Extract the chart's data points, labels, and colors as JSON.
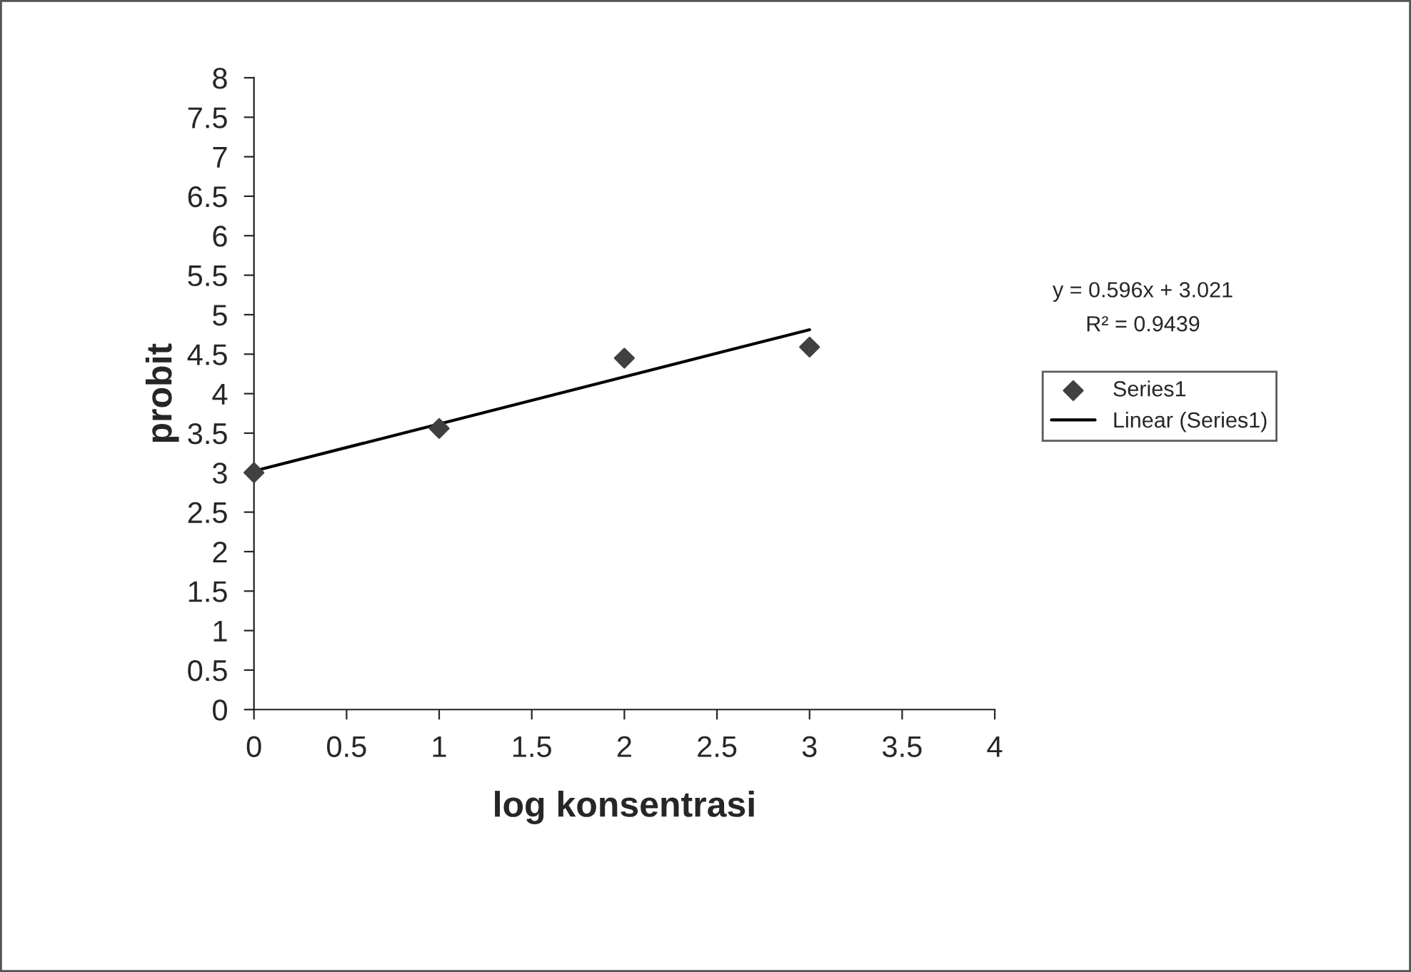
{
  "chart_data": {
    "type": "scatter",
    "xlabel": "log konsentrasi",
    "ylabel": "probit",
    "series": [
      {
        "name": "Series1",
        "color": "#404040",
        "marker": "diamond",
        "x": [
          0,
          1,
          2,
          3
        ],
        "values": [
          3.0,
          3.56,
          4.45,
          4.59
        ]
      },
      {
        "name": "Linear (Series1)",
        "type": "line",
        "color": "#000000",
        "marker": "none",
        "line_style": "solid",
        "x": [
          0,
          3
        ],
        "values": [
          3.02,
          4.81
        ]
      }
    ],
    "annotations": [
      "y = 0.596x + 3.021",
      "R² = 0.9439"
    ],
    "xlim": [
      0,
      4
    ],
    "xticks": [
      0,
      0.5,
      1,
      1.5,
      2,
      2.5,
      3,
      3.5,
      4
    ],
    "ylim": [
      0,
      8
    ],
    "yticks": [
      0,
      0.5,
      1,
      1.5,
      2,
      2.5,
      3,
      3.5,
      4,
      4.5,
      5,
      5.5,
      6,
      6.5,
      7,
      7.5,
      8
    ],
    "grid": false,
    "legend": "right"
  }
}
